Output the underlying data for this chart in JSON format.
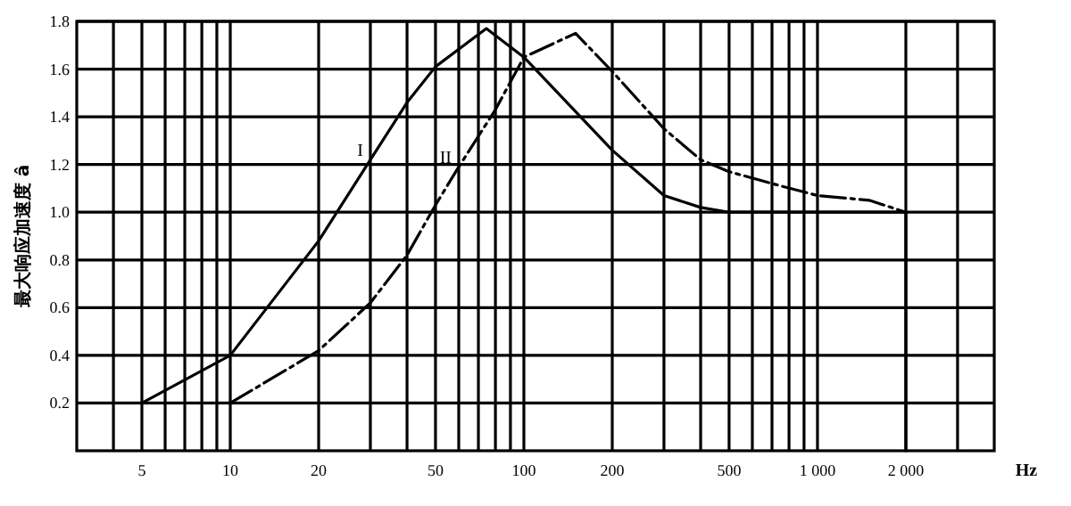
{
  "chart_data": {
    "type": "line",
    "xlabel": "Hz",
    "ylabel": "最大响应加速度 â",
    "log": "x",
    "grid": true,
    "xlim": [
      3,
      4000
    ],
    "ylim": [
      0,
      1.8
    ],
    "xticks": [
      {
        "value": 4,
        "label": null
      },
      5,
      {
        "value": 6,
        "label": null
      },
      {
        "value": 7,
        "label": null
      },
      {
        "value": 8,
        "label": null
      },
      {
        "value": 9,
        "label": null
      },
      10,
      20,
      {
        "value": 30,
        "label": null
      },
      {
        "value": 40,
        "label": null
      },
      50,
      {
        "value": 60,
        "label": null
      },
      {
        "value": 70,
        "label": null
      },
      {
        "value": 80,
        "label": null
      },
      {
        "value": 90,
        "label": null
      },
      100,
      200,
      {
        "value": 300,
        "label": null
      },
      {
        "value": 400,
        "label": null
      },
      500,
      {
        "value": 600,
        "label": null
      },
      {
        "value": 700,
        "label": null
      },
      {
        "value": 800,
        "label": null
      },
      {
        "value": 900,
        "label": null
      },
      {
        "value": 1000,
        "label": "1 000"
      },
      {
        "value": 2000,
        "label": "2 000"
      },
      {
        "value": 3000,
        "label": null
      }
    ],
    "yticks": [
      {
        "value": 0.2,
        "label": "0.2"
      },
      {
        "value": 0.4,
        "label": "0.4"
      },
      {
        "value": 0.6,
        "label": "0.6"
      },
      {
        "value": 0.8,
        "label": "0.8"
      },
      {
        "value": 1.0,
        "label": "1.0"
      },
      {
        "value": 1.2,
        "label": "1.2"
      },
      {
        "value": 1.4,
        "label": "1.4"
      },
      {
        "value": 1.6,
        "label": "1.6"
      },
      {
        "value": 1.8,
        "label": "1.8"
      }
    ],
    "series": [
      {
        "color": "#000000",
        "line_style": "solid",
        "x": [
          5,
          10,
          20,
          30,
          40,
          50,
          74.5,
          100,
          200,
          300,
          400,
          500,
          2000,
          2000
        ],
        "values": [
          0.2,
          0.4,
          0.88,
          1.22,
          1.46,
          1.61,
          1.77,
          1.65,
          1.26,
          1.07,
          1.02,
          1.0,
          1.0,
          0
        ]
      },
      {
        "color": "#000000",
        "line_style": "dashed",
        "x": [
          10,
          20,
          30,
          40,
          50,
          60,
          80,
          100,
          150,
          200,
          300,
          400,
          500,
          700,
          1000,
          1500,
          2000
        ],
        "values": [
          0.2,
          0.42,
          0.62,
          0.82,
          1.03,
          1.19,
          1.43,
          1.65,
          1.75,
          1.59,
          1.35,
          1.22,
          1.17,
          1.12,
          1.07,
          1.05,
          1.0
        ]
      }
    ],
    "annotations": [
      {
        "text": "I",
        "x": 30,
        "y": 1.22
      },
      {
        "text": "II",
        "x": 60,
        "y": 1.19
      }
    ]
  }
}
